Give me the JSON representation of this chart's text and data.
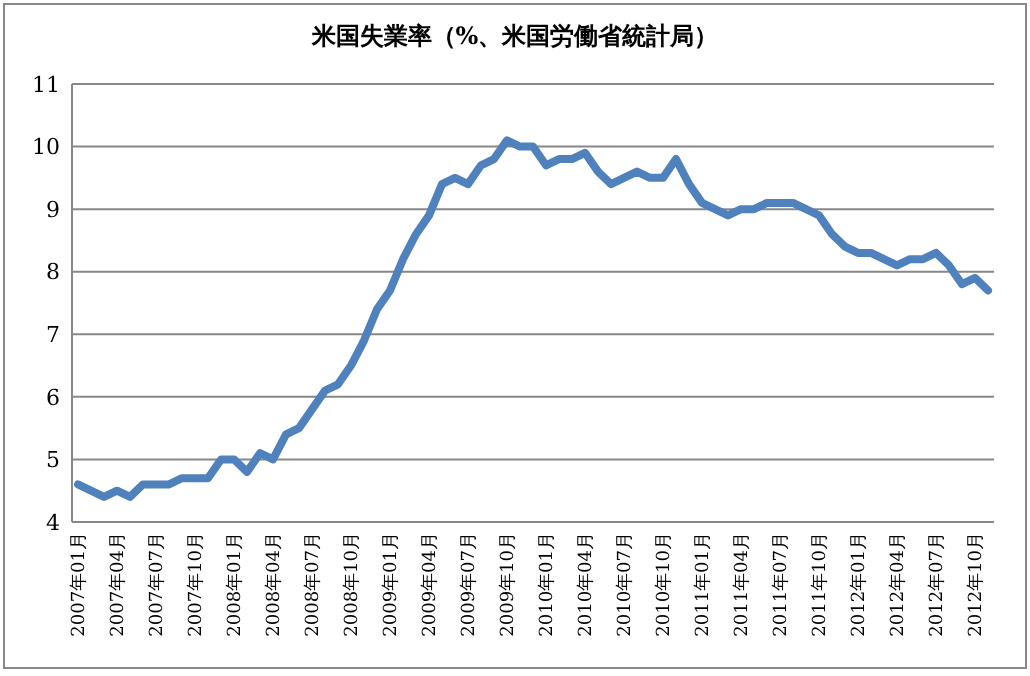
{
  "chart_data": {
    "type": "line",
    "title": "米国失業率（%、米国労働省統計局）",
    "categories": [
      "2007年01月",
      null,
      null,
      "2007年04月",
      null,
      null,
      "2007年07月",
      null,
      null,
      "2007年10月",
      null,
      null,
      "2008年01月",
      null,
      null,
      "2008年04月",
      null,
      null,
      "2008年07月",
      null,
      null,
      "2008年10月",
      null,
      null,
      "2009年01月",
      null,
      null,
      "2009年04月",
      null,
      null,
      "2009年07月",
      null,
      null,
      "2009年10月",
      null,
      null,
      "2010年01月",
      null,
      null,
      "2010年04月",
      null,
      null,
      "2010年07月",
      null,
      null,
      "2010年10月",
      null,
      null,
      "2011年01月",
      null,
      null,
      "2011年04月",
      null,
      null,
      "2011年07月",
      null,
      null,
      "2011年10月",
      null,
      null,
      "2012年01月",
      null,
      null,
      "2012年04月",
      null,
      null,
      "2012年07月",
      null,
      null,
      "2012年10月",
      null
    ],
    "series": [
      {
        "color": "#4f81bd",
        "values": [
          4.6,
          4.5,
          4.4,
          4.5,
          4.4,
          4.6,
          4.6,
          4.6,
          4.7,
          4.7,
          4.7,
          5.0,
          5.0,
          4.8,
          5.1,
          5.0,
          5.4,
          5.5,
          5.8,
          6.1,
          6.2,
          6.5,
          6.9,
          7.4,
          7.7,
          8.2,
          8.6,
          8.9,
          9.4,
          9.5,
          9.4,
          9.7,
          9.8,
          10.1,
          10.0,
          10.0,
          9.7,
          9.8,
          9.8,
          9.9,
          9.6,
          9.4,
          9.5,
          9.6,
          9.5,
          9.5,
          9.8,
          9.4,
          9.1,
          9.0,
          8.9,
          9.0,
          9.0,
          9.1,
          9.1,
          9.1,
          9.0,
          8.9,
          8.6,
          8.4,
          8.3,
          8.3,
          8.2,
          8.1,
          8.2,
          8.2,
          8.3,
          8.1,
          7.8,
          7.9,
          7.7
        ]
      }
    ],
    "ylim": [
      4,
      11
    ],
    "yticks": [
      4,
      5,
      6,
      7,
      8,
      9,
      10,
      11
    ],
    "grid": "y",
    "marker": "none",
    "line_style": "solid"
  }
}
